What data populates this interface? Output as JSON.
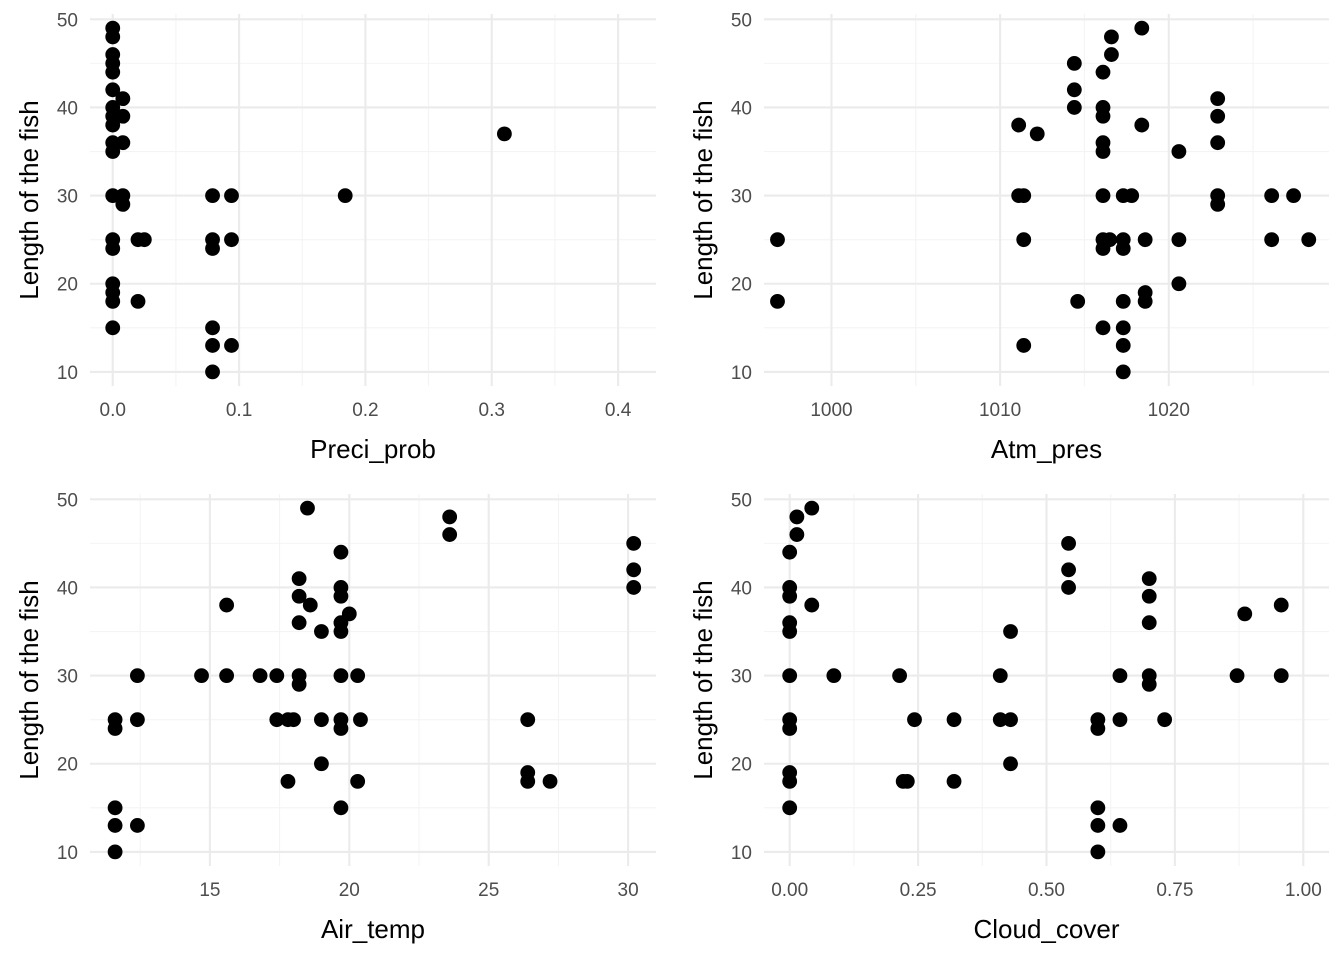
{
  "chart_data": [
    {
      "type": "scatter",
      "xlabel": "Preci_prob",
      "ylabel": "Length of the fish",
      "xlim": [
        -0.018,
        0.43
      ],
      "ylim": [
        8.4,
        50.6
      ],
      "x_ticks": [
        0.0,
        0.1,
        0.2,
        0.3,
        0.4
      ],
      "x_tick_labels": [
        "0.0",
        "0.1",
        "0.2",
        "0.3",
        "0.4"
      ],
      "y_ticks": [
        10,
        20,
        30,
        40,
        50
      ],
      "y_tick_labels": [
        "10",
        "20",
        "30",
        "40",
        "50"
      ],
      "grid": true,
      "points": [
        [
          0,
          49
        ],
        [
          0,
          48
        ],
        [
          0,
          46
        ],
        [
          0,
          45
        ],
        [
          0,
          44
        ],
        [
          0,
          42
        ],
        [
          0,
          40
        ],
        [
          0,
          39
        ],
        [
          0,
          38
        ],
        [
          0,
          36
        ],
        [
          0,
          35
        ],
        [
          0,
          30
        ],
        [
          0,
          25
        ],
        [
          0,
          24
        ],
        [
          0,
          20
        ],
        [
          0,
          19
        ],
        [
          0,
          18
        ],
        [
          0,
          15
        ],
        [
          0.008,
          41
        ],
        [
          0.008,
          39
        ],
        [
          0.008,
          36
        ],
        [
          0.008,
          30
        ],
        [
          0.008,
          29
        ],
        [
          0.02,
          25
        ],
        [
          0.025,
          25
        ],
        [
          0.02,
          18
        ],
        [
          0.079,
          30
        ],
        [
          0.079,
          25
        ],
        [
          0.079,
          24
        ],
        [
          0.079,
          15
        ],
        [
          0.079,
          13
        ],
        [
          0.079,
          10
        ],
        [
          0.094,
          30
        ],
        [
          0.094,
          25
        ],
        [
          0.094,
          13
        ],
        [
          0.184,
          30
        ],
        [
          0.31,
          37
        ]
      ]
    },
    {
      "type": "scatter",
      "xlabel": "Atm_pres",
      "ylabel": "Length of the fish",
      "xlim": [
        996,
        1029.5
      ],
      "ylim": [
        8.4,
        50.6
      ],
      "x_ticks": [
        1000,
        1010,
        1020
      ],
      "x_tick_labels": [
        "1000",
        "1010",
        "1020"
      ],
      "y_ticks": [
        10,
        20,
        30,
        40,
        50
      ],
      "y_tick_labels": [
        "10",
        "20",
        "30",
        "40",
        "50"
      ],
      "grid": true,
      "points": [
        [
          996.8,
          25
        ],
        [
          996.8,
          18
        ],
        [
          1011.1,
          38
        ],
        [
          1011.1,
          30
        ],
        [
          1011.4,
          30
        ],
        [
          1011.4,
          25
        ],
        [
          1011.4,
          13
        ],
        [
          1012.2,
          37
        ],
        [
          1014.4,
          45
        ],
        [
          1014.4,
          42
        ],
        [
          1014.4,
          40
        ],
        [
          1014.6,
          18
        ],
        [
          1016.1,
          44
        ],
        [
          1016.1,
          40
        ],
        [
          1016.1,
          39
        ],
        [
          1016.1,
          36
        ],
        [
          1016.1,
          35
        ],
        [
          1016.1,
          30
        ],
        [
          1016.1,
          25
        ],
        [
          1016.1,
          24
        ],
        [
          1016.1,
          15
        ],
        [
          1016.5,
          25
        ],
        [
          1016.6,
          48
        ],
        [
          1016.6,
          46
        ],
        [
          1017.3,
          30
        ],
        [
          1017.3,
          25
        ],
        [
          1017.3,
          24
        ],
        [
          1017.3,
          18
        ],
        [
          1017.3,
          15
        ],
        [
          1017.3,
          13
        ],
        [
          1017.3,
          10
        ],
        [
          1017.8,
          30
        ],
        [
          1018.4,
          49
        ],
        [
          1018.4,
          38
        ],
        [
          1018.6,
          25
        ],
        [
          1018.6,
          19
        ],
        [
          1018.6,
          18
        ],
        [
          1020.6,
          35
        ],
        [
          1020.6,
          25
        ],
        [
          1020.6,
          20
        ],
        [
          1022.9,
          41
        ],
        [
          1022.9,
          39
        ],
        [
          1022.9,
          36
        ],
        [
          1022.9,
          30
        ],
        [
          1022.9,
          29
        ],
        [
          1026.1,
          30
        ],
        [
          1026.1,
          25
        ],
        [
          1027.4,
          30
        ],
        [
          1028.3,
          25
        ]
      ]
    },
    {
      "type": "scatter",
      "xlabel": "Air_temp",
      "ylabel": "Length of the fish",
      "xlim": [
        10.7,
        31.0
      ],
      "ylim": [
        8.4,
        50.6
      ],
      "x_ticks": [
        15,
        20,
        25,
        30
      ],
      "x_tick_labels": [
        "15",
        "20",
        "25",
        "30"
      ],
      "y_ticks": [
        10,
        20,
        30,
        40,
        50
      ],
      "y_tick_labels": [
        "10",
        "20",
        "30",
        "40",
        "50"
      ],
      "grid": true,
      "points": [
        [
          11.6,
          25
        ],
        [
          11.6,
          24
        ],
        [
          11.6,
          15
        ],
        [
          11.6,
          13
        ],
        [
          11.6,
          10
        ],
        [
          12.4,
          30
        ],
        [
          12.4,
          25
        ],
        [
          12.4,
          13
        ],
        [
          14.7,
          30
        ],
        [
          15.6,
          38
        ],
        [
          15.6,
          30
        ],
        [
          16.8,
          30
        ],
        [
          17.4,
          30
        ],
        [
          17.4,
          25
        ],
        [
          17.8,
          25
        ],
        [
          18.0,
          25
        ],
        [
          17.8,
          18
        ],
        [
          18.2,
          41
        ],
        [
          18.2,
          39
        ],
        [
          18.2,
          36
        ],
        [
          18.2,
          30
        ],
        [
          18.2,
          29
        ],
        [
          18.5,
          49
        ],
        [
          18.6,
          38
        ],
        [
          19.0,
          35
        ],
        [
          19.0,
          25
        ],
        [
          19.0,
          20
        ],
        [
          19.7,
          44
        ],
        [
          19.7,
          40
        ],
        [
          19.7,
          39
        ],
        [
          19.7,
          36
        ],
        [
          19.7,
          35
        ],
        [
          19.7,
          30
        ],
        [
          19.7,
          25
        ],
        [
          19.7,
          24
        ],
        [
          19.7,
          15
        ],
        [
          20.0,
          37
        ],
        [
          20.3,
          30
        ],
        [
          20.4,
          25
        ],
        [
          20.3,
          18
        ],
        [
          23.6,
          48
        ],
        [
          23.6,
          46
        ],
        [
          26.4,
          25
        ],
        [
          26.4,
          19
        ],
        [
          26.4,
          18
        ],
        [
          27.2,
          18
        ],
        [
          30.2,
          45
        ],
        [
          30.2,
          42
        ],
        [
          30.2,
          40
        ]
      ]
    },
    {
      "type": "scatter",
      "xlabel": "Cloud_cover",
      "ylabel": "Length of the fish",
      "xlim": [
        -0.05,
        1.05
      ],
      "ylim": [
        8.4,
        50.6
      ],
      "x_ticks": [
        0,
        0.25,
        0.5,
        0.75,
        1.0
      ],
      "x_tick_labels": [
        "0.00",
        "0.25",
        "0.50",
        "0.75",
        "1.00"
      ],
      "y_ticks": [
        10,
        20,
        30,
        40,
        50
      ],
      "y_tick_labels": [
        "10",
        "20",
        "30",
        "40",
        "50"
      ],
      "grid": true,
      "points": [
        [
          0,
          44
        ],
        [
          0,
          40
        ],
        [
          0,
          39
        ],
        [
          0,
          36
        ],
        [
          0,
          35
        ],
        [
          0,
          30
        ],
        [
          0,
          25
        ],
        [
          0,
          24
        ],
        [
          0,
          19
        ],
        [
          0,
          18
        ],
        [
          0,
          15
        ],
        [
          0.014,
          48
        ],
        [
          0.014,
          46
        ],
        [
          0.043,
          49
        ],
        [
          0.043,
          38
        ],
        [
          0.086,
          30
        ],
        [
          0.214,
          30
        ],
        [
          0.221,
          18
        ],
        [
          0.229,
          18
        ],
        [
          0.243,
          25
        ],
        [
          0.32,
          25
        ],
        [
          0.32,
          18
        ],
        [
          0.41,
          30
        ],
        [
          0.41,
          25
        ],
        [
          0.43,
          35
        ],
        [
          0.43,
          25
        ],
        [
          0.43,
          20
        ],
        [
          0.543,
          45
        ],
        [
          0.543,
          42
        ],
        [
          0.543,
          40
        ],
        [
          0.6,
          25
        ],
        [
          0.6,
          24
        ],
        [
          0.6,
          15
        ],
        [
          0.6,
          13
        ],
        [
          0.6,
          10
        ],
        [
          0.643,
          30
        ],
        [
          0.643,
          25
        ],
        [
          0.643,
          13
        ],
        [
          0.7,
          41
        ],
        [
          0.7,
          39
        ],
        [
          0.7,
          36
        ],
        [
          0.7,
          30
        ],
        [
          0.7,
          29
        ],
        [
          0.73,
          25
        ],
        [
          0.871,
          30
        ],
        [
          0.886,
          37
        ],
        [
          0.957,
          38
        ],
        [
          0.957,
          30
        ]
      ]
    }
  ]
}
